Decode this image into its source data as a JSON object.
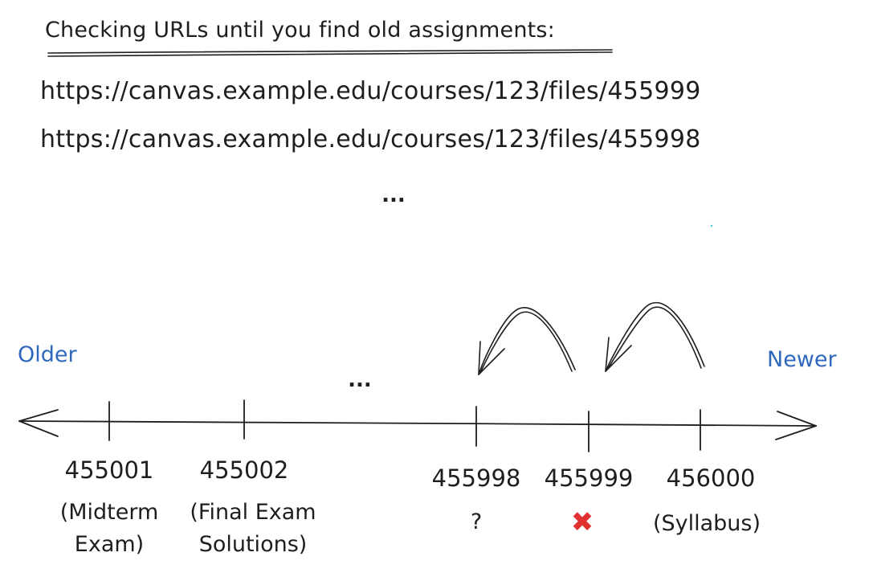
{
  "title": "Checking URLs until you find old assignments:",
  "urls": [
    "https://canvas.example.edu/courses/123/files/455999",
    "https://canvas.example.edu/courses/123/files/455998"
  ],
  "ellipsis": "...",
  "older_label": "Older",
  "newer_label": "Newer",
  "accent_color": "#2f68bd",
  "error_color": "#e03131",
  "ticks": [
    {
      "id": "455001",
      "note": "(Midterm Exam)"
    },
    {
      "id": "455002",
      "note": "(Final Exam Solutions)"
    },
    {
      "id": "455998",
      "note": "?"
    },
    {
      "id": "455999",
      "note": "x-mark-icon"
    },
    {
      "id": "456000",
      "note": "(Syllabus)"
    }
  ]
}
